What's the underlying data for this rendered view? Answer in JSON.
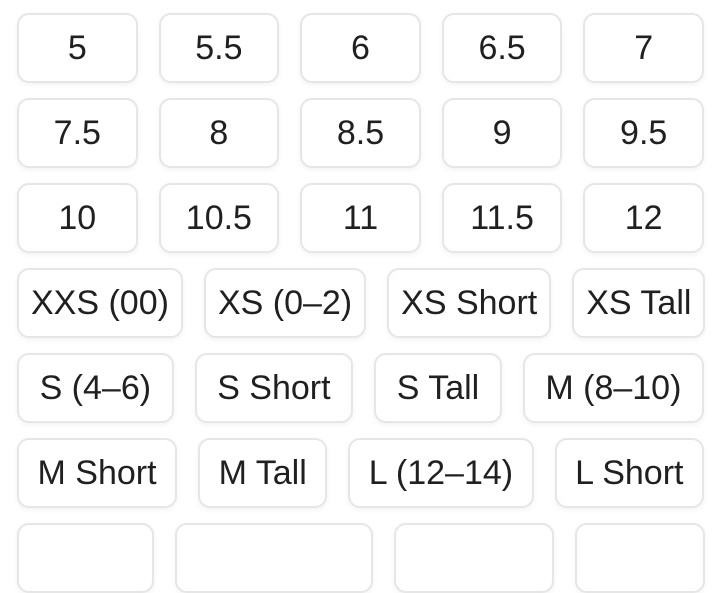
{
  "theme": {
    "page_background": "#ffffff",
    "button_background": "#ffffff",
    "button_border": "#e6e6e6",
    "button_text": "#202020"
  },
  "size_grid": {
    "rows": [
      [
        "5",
        "5.5",
        "6",
        "6.5",
        "7"
      ],
      [
        "7.5",
        "8",
        "8.5",
        "9",
        "9.5"
      ],
      [
        "10",
        "10.5",
        "11",
        "11.5",
        "12"
      ],
      [
        "XXS (00)",
        "XS (0–2)",
        "XS Short",
        "XS Tall"
      ],
      [
        "S (4–6)",
        "S Short",
        "S Tall",
        "M (8–10)"
      ],
      [
        "M Short",
        "M Tall",
        "L (12–14)",
        "L Short"
      ],
      [
        "",
        "",
        "",
        ""
      ]
    ]
  }
}
